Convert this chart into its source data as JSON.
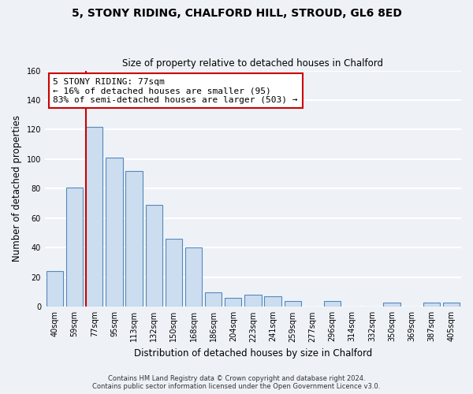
{
  "title": "5, STONY RIDING, CHALFORD HILL, STROUD, GL6 8ED",
  "subtitle": "Size of property relative to detached houses in Chalford",
  "xlabel": "Distribution of detached houses by size in Chalford",
  "ylabel": "Number of detached properties",
  "bar_labels": [
    "40sqm",
    "59sqm",
    "77sqm",
    "95sqm",
    "113sqm",
    "132sqm",
    "150sqm",
    "168sqm",
    "186sqm",
    "204sqm",
    "223sqm",
    "241sqm",
    "259sqm",
    "277sqm",
    "296sqm",
    "314sqm",
    "332sqm",
    "350sqm",
    "369sqm",
    "387sqm",
    "405sqm"
  ],
  "bar_values": [
    24,
    81,
    122,
    101,
    92,
    69,
    46,
    40,
    10,
    6,
    8,
    7,
    4,
    0,
    4,
    0,
    0,
    3,
    0,
    3,
    3
  ],
  "bar_color": "#ccddf0",
  "bar_edge_color": "#5588bb",
  "vline_color": "#cc0000",
  "ylim": [
    0,
    160
  ],
  "yticks": [
    0,
    20,
    40,
    60,
    80,
    100,
    120,
    140,
    160
  ],
  "annotation_line1": "5 STONY RIDING: 77sqm",
  "annotation_line2": "← 16% of detached houses are smaller (95)",
  "annotation_line3": "83% of semi-detached houses are larger (503) →",
  "footer_line1": "Contains HM Land Registry data © Crown copyright and database right 2024.",
  "footer_line2": "Contains public sector information licensed under the Open Government Licence v3.0.",
  "background_color": "#eef2f7",
  "grid_color": "#ffffff",
  "fig_width": 6.0,
  "fig_height": 5.0
}
